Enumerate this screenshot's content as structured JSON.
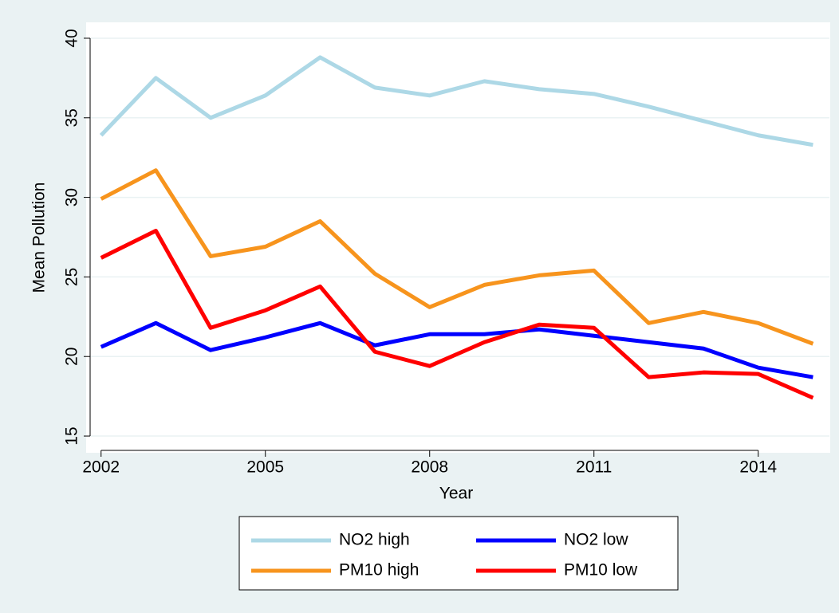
{
  "chart_data": {
    "type": "line",
    "x_label": "Year",
    "y_label": "Mean Pollution",
    "x": [
      2002,
      2003,
      2004,
      2005,
      2006,
      2007,
      2008,
      2009,
      2010,
      2011,
      2012,
      2013,
      2014,
      2015
    ],
    "series": [
      {
        "name": "NO2 high",
        "color": "#add8e6",
        "values": [
          33.9,
          37.5,
          35.0,
          36.4,
          38.8,
          36.9,
          36.4,
          37.3,
          36.8,
          36.5,
          35.7,
          34.8,
          33.9,
          33.3
        ]
      },
      {
        "name": "NO2 low",
        "color": "#0000ff",
        "values": [
          20.6,
          22.1,
          20.4,
          21.2,
          22.1,
          20.7,
          21.4,
          21.4,
          21.7,
          21.3,
          20.9,
          20.5,
          19.3,
          18.7
        ]
      },
      {
        "name": "PM10 high",
        "color": "#f7941d",
        "values": [
          29.9,
          31.7,
          26.3,
          26.9,
          28.5,
          25.2,
          23.1,
          24.5,
          25.1,
          25.4,
          22.1,
          22.8,
          22.1,
          20.8
        ]
      },
      {
        "name": "PM10 low",
        "color": "#ff0000",
        "values": [
          26.2,
          27.9,
          21.8,
          22.9,
          24.4,
          20.3,
          19.4,
          20.9,
          22.0,
          21.8,
          18.7,
          19.0,
          18.9,
          17.4
        ]
      }
    ],
    "xlim": [
      2001.8,
      2015.3
    ],
    "xticks": [
      2002,
      2005,
      2008,
      2011,
      2014
    ],
    "ylim": [
      14.1,
      40.9
    ],
    "yticks": [
      15,
      20,
      25,
      30,
      35,
      40
    ],
    "grid": true,
    "legend": "bottom"
  }
}
